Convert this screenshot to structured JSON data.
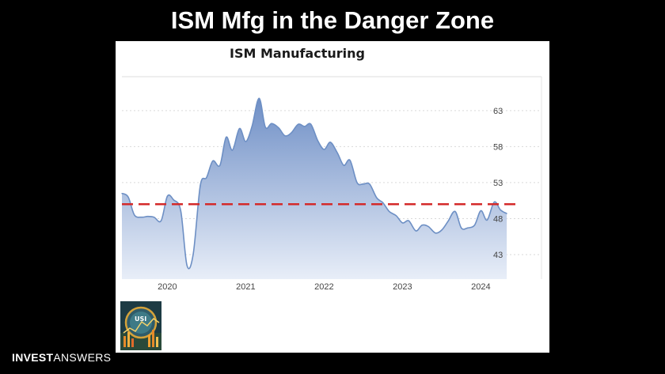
{
  "slide": {
    "title": "ISM Mfg in the Danger Zone"
  },
  "brand": {
    "part1": "INVEST",
    "part2": "ANSWERS"
  },
  "logo": {
    "text": "USI",
    "icon": "invest-answers-logo-icon"
  },
  "colors": {
    "background": "#000000",
    "area_top": "#6f8fc6",
    "area_bottom": "#e8eef8",
    "line": "#6d8fc4",
    "threshold": "#d42a2a"
  },
  "chart_data": {
    "type": "area",
    "title": "ISM Manufacturing",
    "xlabel": "",
    "ylabel": "",
    "x_ticks": [
      "2020",
      "2021",
      "2022",
      "2023",
      "2024"
    ],
    "y_ticks": [
      63,
      58,
      53,
      48,
      43
    ],
    "xlim": [
      2019.42,
      2024.42
    ],
    "ylim": [
      39.6,
      67.7
    ],
    "y_axis_position": "right",
    "grid": "horizontal dotted",
    "threshold": {
      "value": 50,
      "style": "dashed",
      "color": "#d42a2a"
    },
    "series": [
      {
        "x": [
          2019.42,
          2019.5,
          2019.58,
          2019.67,
          2019.75,
          2019.83,
          2019.92,
          2020.0,
          2020.08,
          2020.17,
          2020.25,
          2020.33,
          2020.42,
          2020.5,
          2020.58,
          2020.67,
          2020.75,
          2020.83,
          2020.92,
          2021.0,
          2021.08,
          2021.17,
          2021.25,
          2021.33,
          2021.42,
          2021.5,
          2021.58,
          2021.67,
          2021.75,
          2021.83,
          2021.92,
          2022.0,
          2022.08,
          2022.17,
          2022.25,
          2022.33,
          2022.42,
          2022.5,
          2022.58,
          2022.67,
          2022.75,
          2022.83,
          2022.92,
          2023.0,
          2023.08,
          2023.17,
          2023.25,
          2023.33,
          2023.42,
          2023.5,
          2023.58,
          2023.67,
          2023.75,
          2023.83,
          2023.92,
          2024.0,
          2024.08,
          2024.17,
          2024.25,
          2024.33
        ],
        "values": [
          51.5,
          51.0,
          48.5,
          48.2,
          48.3,
          48.2,
          47.7,
          51.1,
          50.6,
          49.1,
          41.5,
          43.1,
          52.6,
          53.7,
          56.0,
          55.4,
          59.3,
          57.5,
          60.5,
          58.7,
          60.8,
          64.7,
          60.7,
          61.2,
          60.6,
          59.5,
          59.9,
          61.1,
          60.8,
          61.1,
          58.8,
          57.6,
          58.6,
          57.1,
          55.4,
          56.1,
          53.0,
          52.8,
          52.8,
          50.9,
          50.2,
          49.0,
          48.4,
          47.4,
          47.7,
          46.3,
          47.1,
          46.9,
          46.0,
          46.4,
          47.6,
          49.0,
          46.7,
          46.7,
          47.1,
          49.1,
          47.8,
          50.3,
          49.2,
          48.7
        ]
      }
    ]
  }
}
